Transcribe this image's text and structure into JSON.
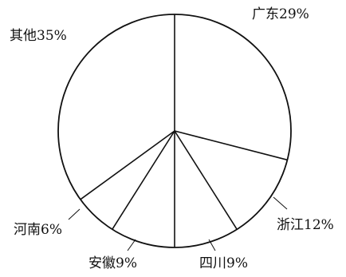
{
  "chart_data": {
    "type": "pie",
    "start": "top",
    "direction": "clockwise",
    "slices": [
      {
        "label": "广东29%",
        "value": 29
      },
      {
        "label": "浙江12%",
        "value": 12
      },
      {
        "label": "四川9%",
        "value": 9
      },
      {
        "label": "安徽9%",
        "value": 9
      },
      {
        "label": "河南6%",
        "value": 6
      },
      {
        "label": "其他35%",
        "value": 35
      }
    ],
    "colors": {
      "fill": "#ffffff",
      "stroke": "#111111",
      "text": "#111111"
    }
  }
}
